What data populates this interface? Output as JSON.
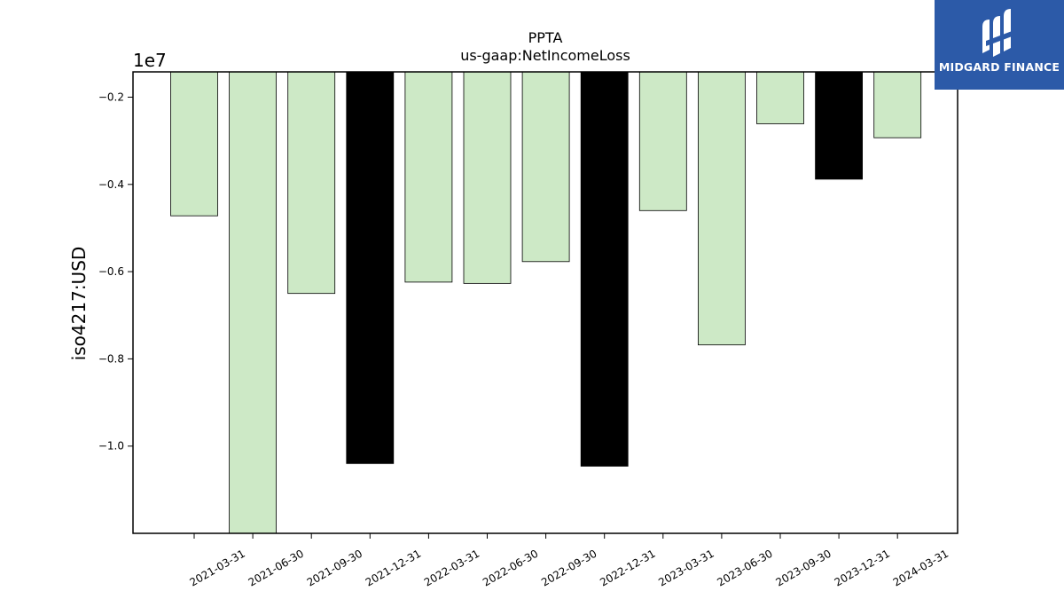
{
  "chart_data": {
    "type": "bar",
    "title": "PPTA",
    "subtitle": "us-gaap:NetIncomeLoss",
    "ylabel": "iso4217:USD",
    "xlabel": "",
    "offset_label": "1e7",
    "ylim": [
      -12000000,
      -1420000
    ],
    "yticks": [
      -10000000,
      -8000000,
      -6000000,
      -4000000,
      -2000000
    ],
    "ytick_labels": [
      "−1.0",
      "−0.8",
      "−0.6",
      "−0.4",
      "−0.2"
    ],
    "categories": [
      "2021-03-31",
      "2021-06-30",
      "2021-09-30",
      "2021-12-31",
      "2022-03-31",
      "2022-06-30",
      "2022-09-30",
      "2022-12-31",
      "2023-03-31",
      "2023-06-30",
      "2023-09-30",
      "2023-12-31",
      "2024-03-31"
    ],
    "values": [
      -4720000,
      -12000000,
      -6500000,
      -10400000,
      -6240000,
      -6270000,
      -5770000,
      -10460000,
      -4600000,
      -7680000,
      -2610000,
      -3880000,
      -2930000
    ],
    "bar_colors": [
      "#cde9c6",
      "#cde9c6",
      "#cde9c6",
      "#000000",
      "#cde9c6",
      "#cde9c6",
      "#cde9c6",
      "#000000",
      "#cde9c6",
      "#cde9c6",
      "#cde9c6",
      "#000000",
      "#cde9c6"
    ],
    "grid": false,
    "legend": "none"
  },
  "logo": {
    "text": "MIDGARD FINANCE",
    "background": "#2c5aa8"
  }
}
